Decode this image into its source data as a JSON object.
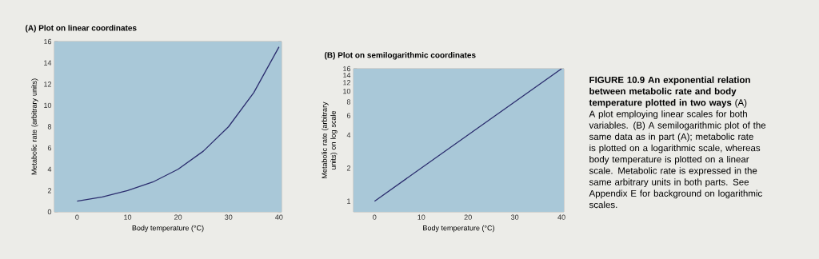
{
  "chart_data": [
    {
      "type": "line",
      "title": "(A) Plot on linear coordinates",
      "xlabel": "Body temperature (°C)",
      "ylabel": "Metabolic rate (arbitrary units)",
      "x": [
        0,
        5,
        10,
        15,
        20,
        25,
        30,
        35,
        40
      ],
      "series": [
        {
          "color": "#2b2d6e",
          "values": [
            1,
            1.4,
            2,
            2.8,
            4,
            5.7,
            8,
            11.2,
            15.5
          ]
        }
      ],
      "xlim": [
        -4.5,
        40.5
      ],
      "ylim": [
        0,
        16
      ],
      "xticks": [
        0,
        10,
        20,
        30,
        40
      ],
      "yticks": [
        0,
        2,
        4,
        6,
        8,
        10,
        12,
        14,
        16
      ]
    },
    {
      "type": "line",
      "title": "(B) Plot on semilogarithmic coordinates",
      "xlabel": "Body temperature (°C)",
      "ylabel": "Metabolic rate (arbitrary units) on log scale",
      "log": true,
      "x": [
        0,
        40
      ],
      "series": [
        {
          "color": "#2b2d6e",
          "values": [
            1,
            16
          ]
        }
      ],
      "xlim": [
        -4.5,
        40.5
      ],
      "ylim": [
        0.8,
        16
      ],
      "xticks": [
        0,
        10,
        20,
        30,
        40
      ],
      "yticks": [
        1,
        2,
        4,
        6,
        8,
        10,
        12,
        14,
        16
      ]
    },
    {
      "type": "other",
      "title": "FIGURE 10.9 An exponential relation between metabolic rate and body temperature plotted in two ways",
      "annotations": [
        "(A) A plot employing linear scales for both variables. (B) A semilogarithmic plot of the same data as in part (A); metabolic rate is plotted on a logarithmic scale, whereas body temperature is plotted on a linear scale. Metabolic rate is expressed in the same arbitrary units in both parts. See Appendix E for background on logarithmic scales."
      ]
    }
  ]
}
